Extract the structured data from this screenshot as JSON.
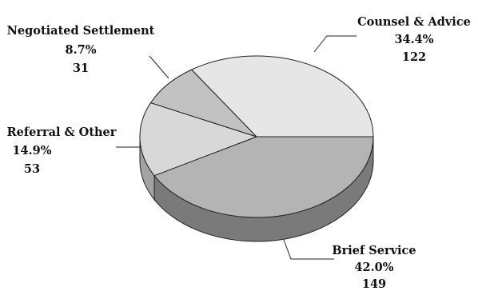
{
  "chart_data": {
    "type": "pie",
    "title": "",
    "slices": [
      {
        "name": "Counsel & Advice",
        "percent": "34.4%",
        "count": "122",
        "value": 34.4,
        "color": "#e6e6e6",
        "side_color": "#bdbdbd"
      },
      {
        "name": "Brief Service",
        "percent": "42.0%",
        "count": "149",
        "value": 42.0,
        "color": "#b4b4b4",
        "side_color": "#7a7a7a"
      },
      {
        "name": "Referral & Other",
        "percent": "14.9%",
        "count": "53",
        "value": 14.9,
        "color": "#d8d8d8",
        "side_color": "#a3a3a3"
      },
      {
        "name": "Negotiated Settlement",
        "percent": "8.7%",
        "count": "31",
        "value": 8.7,
        "color": "#c2c2c2",
        "side_color": "#8e8e8e"
      }
    ]
  }
}
